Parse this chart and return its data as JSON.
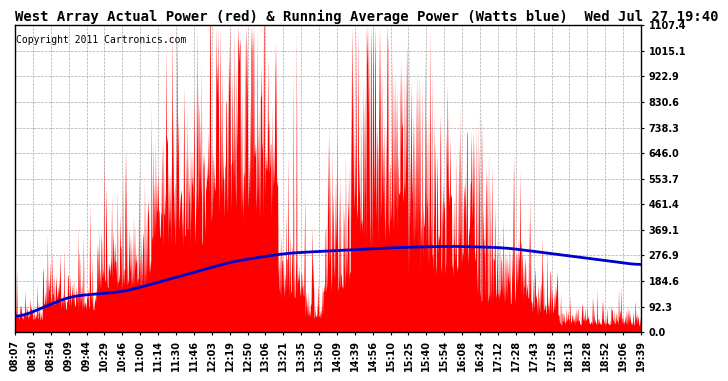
{
  "title": "West Array Actual Power (red) & Running Average Power (Watts blue)  Wed Jul 27 19:40",
  "copyright": "Copyright 2011 Cartronics.com",
  "ylabel_values": [
    0.0,
    92.3,
    184.6,
    276.9,
    369.1,
    461.4,
    553.7,
    646.0,
    738.3,
    830.6,
    922.9,
    1015.1,
    1107.4
  ],
  "ymax": 1107.4,
  "ymin": 0.0,
  "background_color": "#ffffff",
  "plot_bg_color": "#ffffff",
  "grid_color": "#aaaaaa",
  "bar_color": "#ff0000",
  "line_color": "#0000cc",
  "title_fontsize": 10,
  "copyright_fontsize": 7,
  "tick_label_fontsize": 7,
  "x_tick_labels": [
    "08:07",
    "08:30",
    "08:54",
    "09:09",
    "09:44",
    "10:29",
    "10:46",
    "11:00",
    "11:14",
    "11:30",
    "11:46",
    "12:03",
    "12:19",
    "12:50",
    "13:06",
    "13:21",
    "13:35",
    "13:50",
    "14:09",
    "14:39",
    "14:56",
    "15:10",
    "15:25",
    "15:40",
    "15:54",
    "16:08",
    "16:24",
    "17:12",
    "17:28",
    "17:43",
    "17:58",
    "18:13",
    "18:28",
    "18:52",
    "19:06",
    "19:39"
  ],
  "avg_shape_x": [
    0,
    60,
    120,
    180,
    240,
    300,
    360,
    420,
    480,
    540,
    600,
    660,
    691
  ],
  "avg_shape_y": [
    45,
    130,
    145,
    200,
    255,
    285,
    295,
    305,
    310,
    305,
    280,
    255,
    240
  ],
  "n_points": 1200,
  "total_minutes": 691
}
